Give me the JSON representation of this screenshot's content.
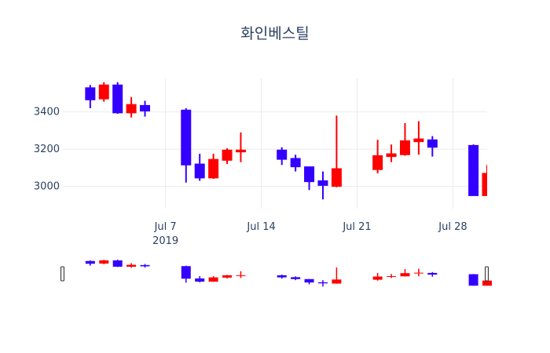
{
  "chart_data": {
    "type": "candlestick",
    "title": "화인베스틸",
    "xlabel": "",
    "ylabel": "",
    "ylim": [
      2880,
      3580
    ],
    "grid": true,
    "increasing_color": "#ff0000",
    "decreasing_color": "#3300ff",
    "x_ticks": [
      {
        "date": "2019-07-07",
        "label": "Jul 7",
        "sublabel": "2019"
      },
      {
        "date": "2019-07-14",
        "label": "Jul 14",
        "sublabel": ""
      },
      {
        "date": "2019-07-21",
        "label": "Jul 21",
        "sublabel": ""
      },
      {
        "date": "2019-07-28",
        "label": "Jul 28",
        "sublabel": ""
      }
    ],
    "y_ticks": [
      3000,
      3200,
      3400
    ],
    "x_range": [
      "2019-06-29T12:00",
      "2019-07-30T12:00"
    ],
    "rangeslider": true,
    "candles": [
      {
        "date": "2019-07-01",
        "open": 3530,
        "high": 3545,
        "low": 3420,
        "close": 3465
      },
      {
        "date": "2019-07-02",
        "open": 3470,
        "high": 3560,
        "low": 3455,
        "close": 3545
      },
      {
        "date": "2019-07-03",
        "open": 3545,
        "high": 3560,
        "low": 3390,
        "close": 3395
      },
      {
        "date": "2019-07-04",
        "open": 3395,
        "high": 3480,
        "low": 3370,
        "close": 3440
      },
      {
        "date": "2019-07-05",
        "open": 3435,
        "high": 3460,
        "low": 3375,
        "close": 3405
      },
      {
        "date": "2019-07-08",
        "open": 3410,
        "high": 3420,
        "low": 3020,
        "close": 3115
      },
      {
        "date": "2019-07-09",
        "open": 3120,
        "high": 3175,
        "low": 3030,
        "close": 3045
      },
      {
        "date": "2019-07-10",
        "open": 3045,
        "high": 3175,
        "low": 3040,
        "close": 3145
      },
      {
        "date": "2019-07-11",
        "open": 3140,
        "high": 3205,
        "low": 3120,
        "close": 3195
      },
      {
        "date": "2019-07-12",
        "open": 3185,
        "high": 3290,
        "low": 3130,
        "close": 3195
      },
      {
        "date": "2019-07-15",
        "open": 3195,
        "high": 3210,
        "low": 3115,
        "close": 3145
      },
      {
        "date": "2019-07-16",
        "open": 3150,
        "high": 3170,
        "low": 3080,
        "close": 3105
      },
      {
        "date": "2019-07-17",
        "open": 3105,
        "high": 3105,
        "low": 2980,
        "close": 3025
      },
      {
        "date": "2019-07-18",
        "open": 3030,
        "high": 3080,
        "low": 2930,
        "close": 3005
      },
      {
        "date": "2019-07-19",
        "open": 3000,
        "high": 3380,
        "low": 2995,
        "close": 3095
      },
      {
        "date": "2019-07-22",
        "open": 3090,
        "high": 3250,
        "low": 3070,
        "close": 3165
      },
      {
        "date": "2019-07-23",
        "open": 3160,
        "high": 3225,
        "low": 3130,
        "close": 3175
      },
      {
        "date": "2019-07-24",
        "open": 3170,
        "high": 3340,
        "low": 3165,
        "close": 3245
      },
      {
        "date": "2019-07-25",
        "open": 3240,
        "high": 3350,
        "low": 3170,
        "close": 3255
      },
      {
        "date": "2019-07-26",
        "open": 3250,
        "high": 3270,
        "low": 3160,
        "close": 3210
      },
      {
        "date": "2019-07-29",
        "open": 3220,
        "high": 3225,
        "low": 2950,
        "close": 2950
      },
      {
        "date": "2019-07-30",
        "open": 2950,
        "high": 3115,
        "low": 2950,
        "close": 3070
      }
    ]
  }
}
